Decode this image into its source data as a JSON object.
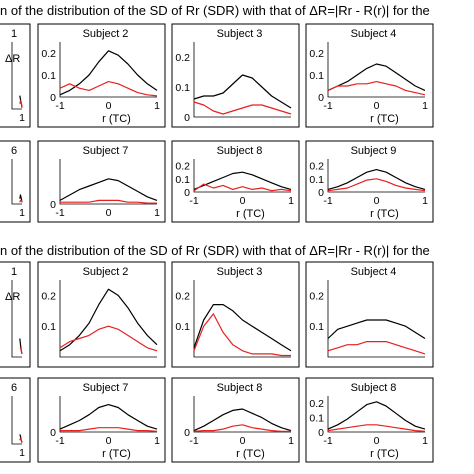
{
  "figure": {
    "title_top": "n  of  the  distribution  of  the  SD  of  Rr  (SDR)  with  that  of  ΔR=|Rr - R(r)|  for  the",
    "title_bottom": "n  of  the  distribution  of  the  SD  of  Rr  (SDR)  with  that  of  ΔR=|Rr - R(r)|  for  the",
    "colors": {
      "sdr": "#000000",
      "delta_r": "#e8201e",
      "frame": "#000000"
    }
  },
  "chart_data": [
    {
      "type": "line",
      "panel_group": "top",
      "row": 1,
      "col": 1,
      "title": "1",
      "xlabel": "",
      "xlim": [
        -1,
        1
      ],
      "ylim": [
        0,
        0.25
      ],
      "annotation": "ΔR",
      "x_ticks": [
        "1"
      ],
      "y_ticks": [],
      "x": [
        0.55,
        0.7,
        0.85,
        1
      ],
      "series": [
        {
          "color": "#000000",
          "values": [
            0.05,
            0.035,
            0.02,
            0.005
          ]
        },
        {
          "color": "#e8201e",
          "values": [
            0.02,
            0.03,
            0.025,
            0.005
          ]
        }
      ]
    },
    {
      "type": "line",
      "panel_group": "top",
      "row": 1,
      "col": 2,
      "title": "Subject 2",
      "xlabel": "r (TC)",
      "xlim": [
        -1,
        1
      ],
      "ylim": [
        0,
        0.25
      ],
      "x_ticks": [
        "-1",
        "0",
        "1"
      ],
      "y_ticks": [
        "0",
        "0.1",
        "0.2"
      ],
      "x": [
        -1,
        -0.8,
        -0.6,
        -0.4,
        -0.2,
        0,
        0.2,
        0.4,
        0.6,
        0.8,
        1
      ],
      "series": [
        {
          "color": "#000000",
          "values": [
            0.01,
            0.03,
            0.06,
            0.1,
            0.16,
            0.21,
            0.19,
            0.15,
            0.1,
            0.06,
            0.03
          ]
        },
        {
          "color": "#e8201e",
          "values": [
            0.04,
            0.06,
            0.04,
            0.03,
            0.05,
            0.07,
            0.06,
            0.04,
            0.02,
            0.01,
            0.005
          ]
        }
      ]
    },
    {
      "type": "line",
      "panel_group": "top",
      "row": 1,
      "col": 3,
      "title": "Subject 3",
      "xlabel": "",
      "xlim": [
        -1,
        1
      ],
      "ylim": [
        0,
        0.25
      ],
      "x_ticks": [],
      "y_ticks": [
        "0",
        "0.1",
        "0.2"
      ],
      "x": [
        -1,
        -0.8,
        -0.6,
        -0.4,
        -0.2,
        0,
        0.2,
        0.4,
        0.6,
        0.8,
        1
      ],
      "series": [
        {
          "color": "#000000",
          "values": [
            0.06,
            0.07,
            0.07,
            0.08,
            0.11,
            0.14,
            0.13,
            0.1,
            0.07,
            0.05,
            0.03
          ]
        },
        {
          "color": "#e8201e",
          "values": [
            0.05,
            0.04,
            0.02,
            0.01,
            0.02,
            0.03,
            0.04,
            0.04,
            0.03,
            0.02,
            0.01
          ]
        }
      ]
    },
    {
      "type": "line",
      "panel_group": "top",
      "row": 1,
      "col": 4,
      "title": "Subject 4",
      "xlabel": "r (TC)",
      "xlim": [
        -1,
        1
      ],
      "ylim": [
        0,
        0.25
      ],
      "x_ticks": [
        "-1",
        "0",
        "1"
      ],
      "y_ticks": [
        "0",
        "0.1",
        "0.2"
      ],
      "x": [
        -1,
        -0.8,
        -0.6,
        -0.4,
        -0.2,
        0,
        0.2,
        0.4,
        0.6,
        0.8,
        1
      ],
      "series": [
        {
          "color": "#000000",
          "values": [
            0.03,
            0.05,
            0.07,
            0.1,
            0.13,
            0.15,
            0.14,
            0.11,
            0.08,
            0.05,
            0.03
          ]
        },
        {
          "color": "#e8201e",
          "values": [
            0.03,
            0.05,
            0.05,
            0.06,
            0.06,
            0.07,
            0.06,
            0.05,
            0.03,
            0.02,
            0.01
          ]
        }
      ]
    },
    {
      "type": "line",
      "panel_group": "top",
      "row": 2,
      "col": 1,
      "title": "6",
      "xlabel": "",
      "xlim": [
        -1,
        1
      ],
      "ylim": [
        0,
        0.25
      ],
      "x_ticks": [
        "1"
      ],
      "y_ticks": [],
      "x": [
        0.55,
        0.7,
        0.85,
        1
      ],
      "series": [
        {
          "color": "#000000",
          "values": [
            0.03,
            0.05,
            0.03,
            0.01
          ]
        },
        {
          "color": "#e8201e",
          "values": [
            0.01,
            0.02,
            0.02,
            0.01
          ]
        }
      ]
    },
    {
      "type": "line",
      "panel_group": "top",
      "row": 2,
      "col": 2,
      "title": "Subject 7",
      "xlabel": "",
      "xlim": [
        -1,
        1
      ],
      "ylim": [
        0,
        0.25
      ],
      "x_ticks": [
        "-1",
        "0",
        "1"
      ],
      "y_ticks": [
        "0"
      ],
      "x": [
        -1,
        -0.8,
        -0.6,
        -0.4,
        -0.2,
        0,
        0.2,
        0.4,
        0.6,
        0.8,
        1
      ],
      "series": [
        {
          "color": "#000000",
          "values": [
            0.02,
            0.05,
            0.08,
            0.1,
            0.12,
            0.14,
            0.13,
            0.1,
            0.07,
            0.04,
            0.02
          ]
        },
        {
          "color": "#e8201e",
          "values": [
            0.01,
            0.01,
            0.01,
            0.01,
            0.02,
            0.02,
            0.02,
            0.01,
            0.01,
            0.005,
            0.005
          ]
        }
      ]
    },
    {
      "type": "line",
      "panel_group": "top",
      "row": 2,
      "col": 3,
      "title": "Subject 8",
      "xlabel": "r (TC)",
      "xlim": [
        -1,
        1
      ],
      "ylim": [
        0,
        0.25
      ],
      "x_ticks": [
        "-1",
        "0",
        "1"
      ],
      "y_ticks": [
        "0",
        "0.1",
        "0.2"
      ],
      "x": [
        -1,
        -0.8,
        -0.6,
        -0.4,
        -0.2,
        0,
        0.2,
        0.4,
        0.6,
        0.8,
        1
      ],
      "series": [
        {
          "color": "#000000",
          "values": [
            0.02,
            0.05,
            0.08,
            0.11,
            0.14,
            0.15,
            0.13,
            0.1,
            0.07,
            0.04,
            0.02
          ]
        },
        {
          "color": "#e8201e",
          "values": [
            0.01,
            0.06,
            0.03,
            0.05,
            0.02,
            0.04,
            0.02,
            0.03,
            0.01,
            0.02,
            0.01
          ]
        }
      ]
    },
    {
      "type": "line",
      "panel_group": "top",
      "row": 2,
      "col": 4,
      "title": "Subject 9",
      "xlabel": "r (TC)",
      "xlim": [
        -1,
        1
      ],
      "ylim": [
        0,
        0.25
      ],
      "x_ticks": [
        "-1",
        "0",
        "1"
      ],
      "y_ticks": [
        "0",
        "0.1",
        "0.2"
      ],
      "x": [
        -1,
        -0.8,
        -0.6,
        -0.4,
        -0.2,
        0,
        0.2,
        0.4,
        0.6,
        0.8,
        1
      ],
      "series": [
        {
          "color": "#000000",
          "values": [
            0.02,
            0.04,
            0.07,
            0.11,
            0.15,
            0.17,
            0.15,
            0.11,
            0.07,
            0.04,
            0.02
          ]
        },
        {
          "color": "#e8201e",
          "values": [
            0.01,
            0.02,
            0.03,
            0.06,
            0.09,
            0.1,
            0.08,
            0.05,
            0.03,
            0.02,
            0.01
          ]
        }
      ]
    },
    {
      "type": "line",
      "panel_group": "bottom",
      "row": 1,
      "col": 1,
      "title": "1",
      "xlabel": "",
      "xlim": [
        -1,
        1
      ],
      "ylim": [
        0,
        0.25
      ],
      "annotation": "ΔR",
      "x_ticks": [],
      "y_ticks": [],
      "x": [
        0.55,
        0.7,
        0.85,
        1
      ],
      "series": [
        {
          "color": "#000000",
          "values": [
            0.06,
            0.04,
            0.02,
            0.01
          ]
        },
        {
          "color": "#e8201e",
          "values": [
            0.03,
            0.03,
            0.02,
            0.01
          ]
        }
      ]
    },
    {
      "type": "line",
      "panel_group": "bottom",
      "row": 1,
      "col": 2,
      "title": "Subject 2",
      "xlabel": "",
      "xlim": [
        -1,
        1
      ],
      "ylim": [
        0,
        0.25
      ],
      "x_ticks": [],
      "y_ticks": [
        "0.1",
        "0.2"
      ],
      "x": [
        -1,
        -0.8,
        -0.6,
        -0.4,
        -0.2,
        0,
        0.2,
        0.4,
        0.6,
        0.8,
        1
      ],
      "series": [
        {
          "color": "#000000",
          "values": [
            0.02,
            0.04,
            0.07,
            0.11,
            0.17,
            0.22,
            0.2,
            0.16,
            0.11,
            0.07,
            0.04
          ]
        },
        {
          "color": "#e8201e",
          "values": [
            0.03,
            0.05,
            0.06,
            0.07,
            0.09,
            0.1,
            0.09,
            0.07,
            0.05,
            0.03,
            0.02
          ]
        }
      ]
    },
    {
      "type": "line",
      "panel_group": "bottom",
      "row": 1,
      "col": 3,
      "title": "Subject 3",
      "xlabel": "",
      "xlim": [
        -1,
        1
      ],
      "ylim": [
        0,
        0.25
      ],
      "x_ticks": [],
      "y_ticks": [
        "0.1",
        "0.2"
      ],
      "x": [
        -1,
        -0.8,
        -0.6,
        -0.4,
        -0.2,
        0,
        0.2,
        0.4,
        0.6,
        0.8,
        1
      ],
      "series": [
        {
          "color": "#000000",
          "values": [
            0.03,
            0.12,
            0.17,
            0.17,
            0.15,
            0.12,
            0.1,
            0.08,
            0.06,
            0.04,
            0.02
          ]
        },
        {
          "color": "#e8201e",
          "values": [
            0.02,
            0.1,
            0.14,
            0.08,
            0.04,
            0.02,
            0.01,
            0.01,
            0.01,
            0.005,
            0.005
          ]
        }
      ]
    },
    {
      "type": "line",
      "panel_group": "bottom",
      "row": 1,
      "col": 4,
      "title": "Subject 4",
      "xlabel": "",
      "xlim": [
        -1,
        1
      ],
      "ylim": [
        0,
        0.25
      ],
      "x_ticks": [],
      "y_ticks": [
        "0.1",
        "0.2"
      ],
      "x": [
        -1,
        -0.8,
        -0.6,
        -0.4,
        -0.2,
        0,
        0.2,
        0.4,
        0.6,
        0.8,
        1
      ],
      "series": [
        {
          "color": "#000000",
          "values": [
            0.06,
            0.09,
            0.1,
            0.11,
            0.12,
            0.12,
            0.12,
            0.11,
            0.1,
            0.08,
            0.06
          ]
        },
        {
          "color": "#e8201e",
          "values": [
            0.02,
            0.03,
            0.04,
            0.04,
            0.05,
            0.05,
            0.05,
            0.04,
            0.03,
            0.02,
            0.01
          ]
        }
      ]
    },
    {
      "type": "line",
      "panel_group": "bottom",
      "row": 2,
      "col": 1,
      "title": "6",
      "xlabel": "",
      "xlim": [
        -1,
        1
      ],
      "ylim": [
        0,
        0.25
      ],
      "x_ticks": [
        "1"
      ],
      "y_ticks": [],
      "x": [
        0.55,
        0.7,
        0.85,
        1
      ],
      "series": [
        {
          "color": "#000000",
          "values": [
            0.05,
            0.04,
            0.02,
            0.01
          ]
        },
        {
          "color": "#e8201e",
          "values": [
            0.02,
            0.03,
            0.02,
            0.005
          ]
        }
      ]
    },
    {
      "type": "line",
      "panel_group": "bottom",
      "row": 2,
      "col": 2,
      "title": "Subject 7",
      "xlabel": "r (TC)",
      "xlim": [
        -1,
        1
      ],
      "ylim": [
        0,
        0.25
      ],
      "x_ticks": [
        "-1",
        "0",
        "1"
      ],
      "y_ticks": [
        "0"
      ],
      "x": [
        -1,
        -0.8,
        -0.6,
        -0.4,
        -0.2,
        0,
        0.2,
        0.4,
        0.6,
        0.8,
        1
      ],
      "series": [
        {
          "color": "#000000",
          "values": [
            0.02,
            0.05,
            0.08,
            0.12,
            0.17,
            0.19,
            0.17,
            0.12,
            0.08,
            0.04,
            0.02
          ]
        },
        {
          "color": "#e8201e",
          "values": [
            0.01,
            0.01,
            0.01,
            0.02,
            0.03,
            0.03,
            0.03,
            0.02,
            0.01,
            0.01,
            0.005
          ]
        }
      ]
    },
    {
      "type": "line",
      "panel_group": "bottom",
      "row": 2,
      "col": 3,
      "title": "Subject 8",
      "xlabel": "r (TC)",
      "xlim": [
        -1,
        1
      ],
      "ylim": [
        0,
        0.25
      ],
      "x_ticks": [
        "-1",
        "0",
        "1"
      ],
      "y_ticks": [
        "0"
      ],
      "x": [
        -1,
        -0.8,
        -0.6,
        -0.4,
        -0.2,
        0,
        0.2,
        0.4,
        0.6,
        0.8,
        1
      ],
      "series": [
        {
          "color": "#000000",
          "values": [
            0.01,
            0.04,
            0.08,
            0.12,
            0.15,
            0.16,
            0.13,
            0.1,
            0.06,
            0.03,
            0.01
          ]
        },
        {
          "color": "#e8201e",
          "values": [
            0.005,
            0.01,
            0.01,
            0.02,
            0.04,
            0.05,
            0.03,
            0.02,
            0.01,
            0.005,
            0.005
          ]
        }
      ]
    },
    {
      "type": "line",
      "panel_group": "bottom",
      "row": 2,
      "col": 4,
      "title": "Subject 8",
      "xlabel": "r (TC)",
      "xlim": [
        -1,
        1
      ],
      "ylim": [
        0,
        0.25
      ],
      "x_ticks": [
        "-1",
        "0",
        "1"
      ],
      "y_ticks": [
        "0",
        "0.1",
        "0.2"
      ],
      "x": [
        -1,
        -0.8,
        -0.6,
        -0.4,
        -0.2,
        0,
        0.2,
        0.4,
        0.6,
        0.8,
        1
      ],
      "series": [
        {
          "color": "#000000",
          "values": [
            0.02,
            0.05,
            0.09,
            0.14,
            0.19,
            0.21,
            0.18,
            0.13,
            0.08,
            0.04,
            0.02
          ]
        },
        {
          "color": "#e8201e",
          "values": [
            0.01,
            0.02,
            0.03,
            0.04,
            0.05,
            0.05,
            0.04,
            0.03,
            0.02,
            0.01,
            0.005
          ]
        }
      ]
    }
  ]
}
